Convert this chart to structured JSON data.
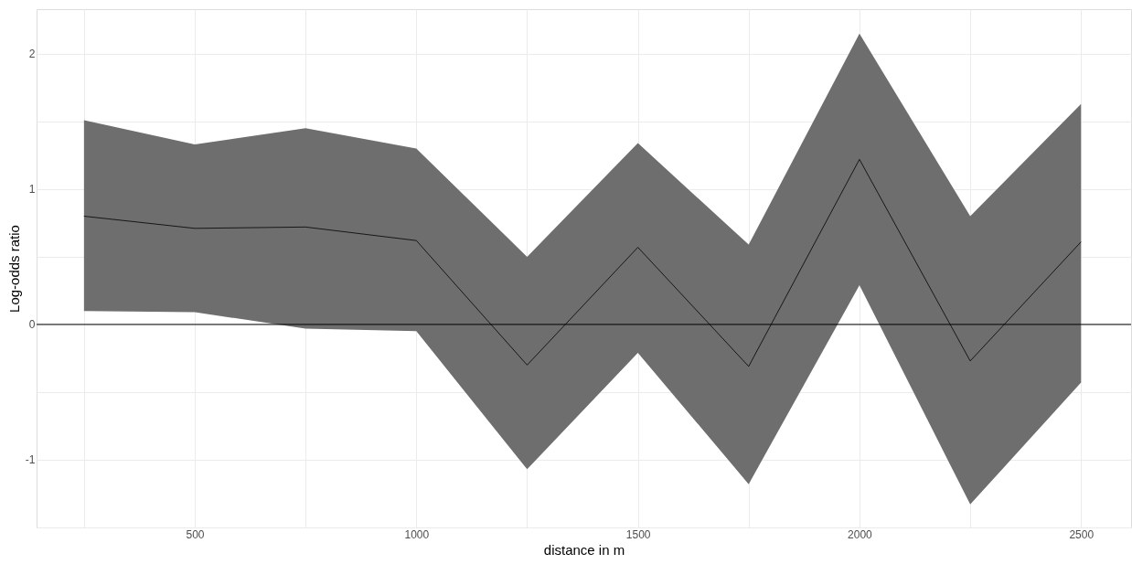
{
  "chart_data": {
    "type": "line",
    "xlabel": "distance in m",
    "ylabel": "Log-odds ratio",
    "x": [
      250,
      500,
      750,
      1000,
      1250,
      1500,
      1750,
      2000,
      2250,
      2500
    ],
    "series": [
      {
        "color": "#000000",
        "values": [
          0.8,
          0.71,
          0.72,
          0.62,
          -0.3,
          0.57,
          -0.31,
          1.22,
          -0.27,
          0.61
        ],
        "lower": [
          0.1,
          0.09,
          -0.03,
          -0.05,
          -1.07,
          -0.21,
          -1.18,
          0.29,
          -1.33,
          -0.43
        ],
        "upper": [
          1.51,
          1.33,
          1.45,
          1.3,
          0.5,
          1.34,
          0.59,
          2.15,
          0.8,
          1.63
        ]
      }
    ],
    "xlim": [
      143,
      2613
    ],
    "ylim": [
      -1.5,
      2.33
    ],
    "xticks": [
      {
        "value": 250,
        "label": null
      },
      500,
      {
        "value": 750,
        "label": null
      },
      1000,
      {
        "value": 1250,
        "label": null
      },
      1500,
      {
        "value": 1750,
        "label": null
      },
      2000,
      {
        "value": 2250,
        "label": null
      },
      2500
    ],
    "yticks": [
      {
        "value": -1.5,
        "label": null
      },
      -1,
      {
        "value": -0.5,
        "label": null
      },
      0,
      {
        "value": 0.5,
        "label": null
      },
      1,
      {
        "value": 1.5,
        "label": null
      },
      2
    ],
    "ref_lines": [
      {
        "axis": "y",
        "value": 0,
        "color": "#000000"
      }
    ],
    "grid": true,
    "marker": "none",
    "line_style": "solid"
  }
}
